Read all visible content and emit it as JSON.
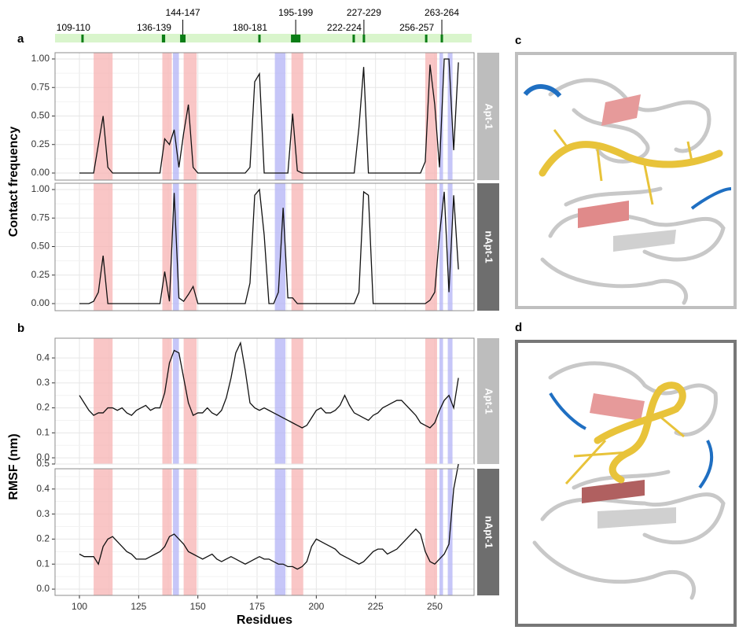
{
  "panel_labels": [
    "a",
    "b",
    "c",
    "d"
  ],
  "chart_data": [
    {
      "type": "line",
      "ylabel": "Contact frequency",
      "sites": [
        {
          "label": "109-110",
          "start": 100.8,
          "end": 101.8
        },
        {
          "label": "136-139",
          "start": 134.8,
          "end": 136.2
        },
        {
          "label": "144-147",
          "start": 142.5,
          "end": 144.8
        },
        {
          "label": "180-181",
          "start": 175.5,
          "end": 176.5
        },
        {
          "label": "195-199",
          "start": 189.3,
          "end": 193.3
        },
        {
          "label": "222-224",
          "start": 215.3,
          "end": 216.3
        },
        {
          "label": "227-229",
          "start": 219.6,
          "end": 220.6
        },
        {
          "label": "256-257",
          "start": 245.9,
          "end": 246.9
        },
        {
          "label": "263-264",
          "start": 252.5,
          "end": 253.5
        }
      ],
      "site_colors": {
        "strip": "#d9f5cc",
        "mark": "#0b7d16"
      },
      "bands": [
        {
          "start": 106,
          "end": 114,
          "color": "#f7b3b3"
        },
        {
          "start": 135,
          "end": 139,
          "color": "#f7b3b3"
        },
        {
          "start": 144,
          "end": 149.5,
          "color": "#f7b3b3"
        },
        {
          "start": 189.5,
          "end": 194.5,
          "color": "#f7b3b3"
        },
        {
          "start": 246,
          "end": 251,
          "color": "#f7b3b3"
        },
        {
          "start": 139.5,
          "end": 142,
          "color": "#b3b3f5"
        },
        {
          "start": 182.5,
          "end": 187,
          "color": "#b3b3f5"
        },
        {
          "start": 252,
          "end": 253.5,
          "color": "#b3b3f5"
        },
        {
          "start": 255.5,
          "end": 257.5,
          "color": "#b3b3f5"
        }
      ],
      "x": [
        100,
        102,
        104,
        106,
        108,
        110,
        112,
        114,
        116,
        118,
        120,
        122,
        124,
        126,
        128,
        130,
        132,
        134,
        136,
        138,
        140,
        142,
        144,
        146,
        148,
        150,
        152,
        154,
        156,
        158,
        160,
        162,
        164,
        166,
        168,
        170,
        172,
        174,
        176,
        178,
        180,
        182,
        184,
        186,
        188,
        190,
        192,
        194,
        196,
        198,
        200,
        202,
        204,
        206,
        208,
        210,
        212,
        214,
        216,
        218,
        220,
        222,
        224,
        226,
        228,
        230,
        232,
        234,
        236,
        238,
        240,
        242,
        244,
        246,
        248,
        250,
        252,
        254,
        256,
        258,
        260
      ],
      "xlim": [
        89.7,
        266.6
      ],
      "xticks": [
        100,
        125,
        150,
        175,
        200,
        225,
        250
      ],
      "grid": true,
      "facets": [
        {
          "name": "Apt-1",
          "strip_color": "#bdbdbd",
          "color": "#111111",
          "ylim": [
            -0.062,
            1.055
          ],
          "yticks": [
            {
              "value": 0,
              "label": "0.00"
            },
            {
              "value": 0.25,
              "label": "0.25"
            },
            {
              "value": 0.5,
              "label": "0.50"
            },
            {
              "value": 0.75,
              "label": "0.75"
            },
            {
              "value": 1,
              "label": "1.00"
            }
          ],
          "values": [
            0,
            0,
            0,
            0,
            0.25,
            0.5,
            0.05,
            0,
            0,
            0,
            0,
            0,
            0,
            0,
            0,
            0,
            0,
            0,
            0.3,
            0.25,
            0.38,
            0.05,
            0.35,
            0.6,
            0.05,
            0,
            0,
            0,
            0,
            0,
            0,
            0,
            0,
            0,
            0,
            0,
            0.05,
            0.8,
            0.87,
            0,
            0,
            0,
            0,
            0,
            0,
            0.52,
            0.02,
            0,
            0,
            0,
            0,
            0,
            0,
            0,
            0,
            0,
            0,
            0,
            0,
            0.4,
            0.93,
            0,
            0,
            0,
            0,
            0,
            0,
            0,
            0,
            0,
            0,
            0,
            0,
            0.1,
            0.95,
            0.6,
            0.05,
            1,
            1,
            0.2,
            0.97
          ]
        },
        {
          "name": "nApt-1",
          "strip_color": "#6e6e6e",
          "color": "#111111",
          "ylim": [
            -0.062,
            1.055
          ],
          "yticks": [
            {
              "value": 0,
              "label": "0.00"
            },
            {
              "value": 0.25,
              "label": "0.25"
            },
            {
              "value": 0.5,
              "label": "0.50"
            },
            {
              "value": 0.75,
              "label": "0.75"
            },
            {
              "value": 1,
              "label": "1.00"
            }
          ],
          "values": [
            0,
            0,
            0,
            0.02,
            0.1,
            0.42,
            0,
            0,
            0,
            0,
            0,
            0,
            0,
            0,
            0,
            0,
            0,
            0,
            0.28,
            0.02,
            0.97,
            0.05,
            0.02,
            0.08,
            0.15,
            0,
            0,
            0,
            0,
            0,
            0,
            0,
            0,
            0,
            0,
            0,
            0.18,
            0.95,
            1,
            0.6,
            0,
            0,
            0.1,
            0.84,
            0.05,
            0.05,
            0,
            0,
            0,
            0,
            0,
            0,
            0,
            0,
            0,
            0,
            0,
            0,
            0,
            0.1,
            0.98,
            0.95,
            0,
            0,
            0,
            0,
            0,
            0,
            0,
            0,
            0,
            0,
            0,
            0,
            0.03,
            0.1,
            0.6,
            0.98,
            0.1,
            0.95,
            0.3
          ]
        }
      ]
    },
    {
      "type": "line",
      "ylabel": "RMSF (nm)",
      "xlabel": "Residues",
      "bands": [
        {
          "start": 106,
          "end": 114,
          "color": "#f7b3b3"
        },
        {
          "start": 135,
          "end": 139,
          "color": "#f7b3b3"
        },
        {
          "start": 144,
          "end": 149.5,
          "color": "#f7b3b3"
        },
        {
          "start": 189.5,
          "end": 194.5,
          "color": "#f7b3b3"
        },
        {
          "start": 246,
          "end": 251,
          "color": "#f7b3b3"
        },
        {
          "start": 139.5,
          "end": 142,
          "color": "#b3b3f5"
        },
        {
          "start": 182.5,
          "end": 187,
          "color": "#b3b3f5"
        },
        {
          "start": 252,
          "end": 253.5,
          "color": "#b3b3f5"
        },
        {
          "start": 255.5,
          "end": 257.5,
          "color": "#b3b3f5"
        }
      ],
      "x": [
        100,
        102,
        104,
        106,
        108,
        110,
        112,
        114,
        116,
        118,
        120,
        122,
        124,
        126,
        128,
        130,
        132,
        134,
        136,
        138,
        140,
        142,
        144,
        146,
        148,
        150,
        152,
        154,
        156,
        158,
        160,
        162,
        164,
        166,
        168,
        170,
        172,
        174,
        176,
        178,
        180,
        182,
        184,
        186,
        188,
        190,
        192,
        194,
        196,
        198,
        200,
        202,
        204,
        206,
        208,
        210,
        212,
        214,
        216,
        218,
        220,
        222,
        224,
        226,
        228,
        230,
        232,
        234,
        236,
        238,
        240,
        242,
        244,
        246,
        248,
        250,
        252,
        254,
        256,
        258,
        260
      ],
      "xlim": [
        89.7,
        266.6
      ],
      "xticks": [
        100,
        125,
        150,
        175,
        200,
        225,
        250
      ],
      "grid": true,
      "facets": [
        {
          "name": "Apt-1",
          "strip_color": "#bdbdbd",
          "color": "#111111",
          "ylim": [
            -0.025,
            0.479
          ],
          "yticks": [
            {
              "value": 0,
              "label": "0.0"
            },
            {
              "value": 0.1,
              "label": "0.1"
            },
            {
              "value": 0.2,
              "label": "0.2"
            },
            {
              "value": 0.3,
              "label": "0.3"
            },
            {
              "value": 0.4,
              "label": "0.4"
            }
          ],
          "values": [
            0.25,
            0.22,
            0.19,
            0.17,
            0.18,
            0.18,
            0.2,
            0.2,
            0.19,
            0.2,
            0.18,
            0.17,
            0.19,
            0.2,
            0.21,
            0.19,
            0.2,
            0.2,
            0.26,
            0.38,
            0.43,
            0.42,
            0.32,
            0.22,
            0.17,
            0.18,
            0.18,
            0.2,
            0.18,
            0.17,
            0.19,
            0.24,
            0.32,
            0.42,
            0.46,
            0.35,
            0.22,
            0.2,
            0.19,
            0.2,
            0.19,
            0.18,
            0.17,
            0.16,
            0.15,
            0.14,
            0.13,
            0.12,
            0.13,
            0.16,
            0.19,
            0.2,
            0.18,
            0.18,
            0.19,
            0.21,
            0.25,
            0.21,
            0.18,
            0.17,
            0.16,
            0.15,
            0.17,
            0.18,
            0.2,
            0.21,
            0.22,
            0.23,
            0.23,
            0.21,
            0.19,
            0.17,
            0.14,
            0.13,
            0.12,
            0.14,
            0.19,
            0.23,
            0.25,
            0.2,
            0.32
          ]
        },
        {
          "name": "nApt-1",
          "strip_color": "#6e6e6e",
          "color": "#111111",
          "ylim": [
            -0.025,
            0.481
          ],
          "yticks": [
            {
              "value": 0,
              "label": "0.0"
            },
            {
              "value": 0.1,
              "label": "0.1"
            },
            {
              "value": 0.2,
              "label": "0.2"
            },
            {
              "value": 0.3,
              "label": "0.3"
            },
            {
              "value": 0.4,
              "label": "0.4"
            },
            {
              "value": 0.5,
              "label": "0.5"
            }
          ],
          "values": [
            0.14,
            0.13,
            0.13,
            0.13,
            0.1,
            0.17,
            0.2,
            0.21,
            0.19,
            0.17,
            0.15,
            0.14,
            0.12,
            0.12,
            0.12,
            0.13,
            0.14,
            0.15,
            0.17,
            0.21,
            0.22,
            0.2,
            0.18,
            0.15,
            0.14,
            0.13,
            0.12,
            0.13,
            0.14,
            0.12,
            0.11,
            0.12,
            0.13,
            0.12,
            0.11,
            0.1,
            0.11,
            0.12,
            0.13,
            0.12,
            0.12,
            0.11,
            0.1,
            0.1,
            0.09,
            0.09,
            0.08,
            0.09,
            0.11,
            0.17,
            0.2,
            0.19,
            0.18,
            0.17,
            0.16,
            0.14,
            0.13,
            0.12,
            0.11,
            0.1,
            0.11,
            0.13,
            0.15,
            0.16,
            0.16,
            0.14,
            0.15,
            0.16,
            0.18,
            0.2,
            0.22,
            0.24,
            0.22,
            0.15,
            0.11,
            0.1,
            0.12,
            0.14,
            0.18,
            0.4,
            0.5
          ]
        }
      ]
    }
  ]
}
